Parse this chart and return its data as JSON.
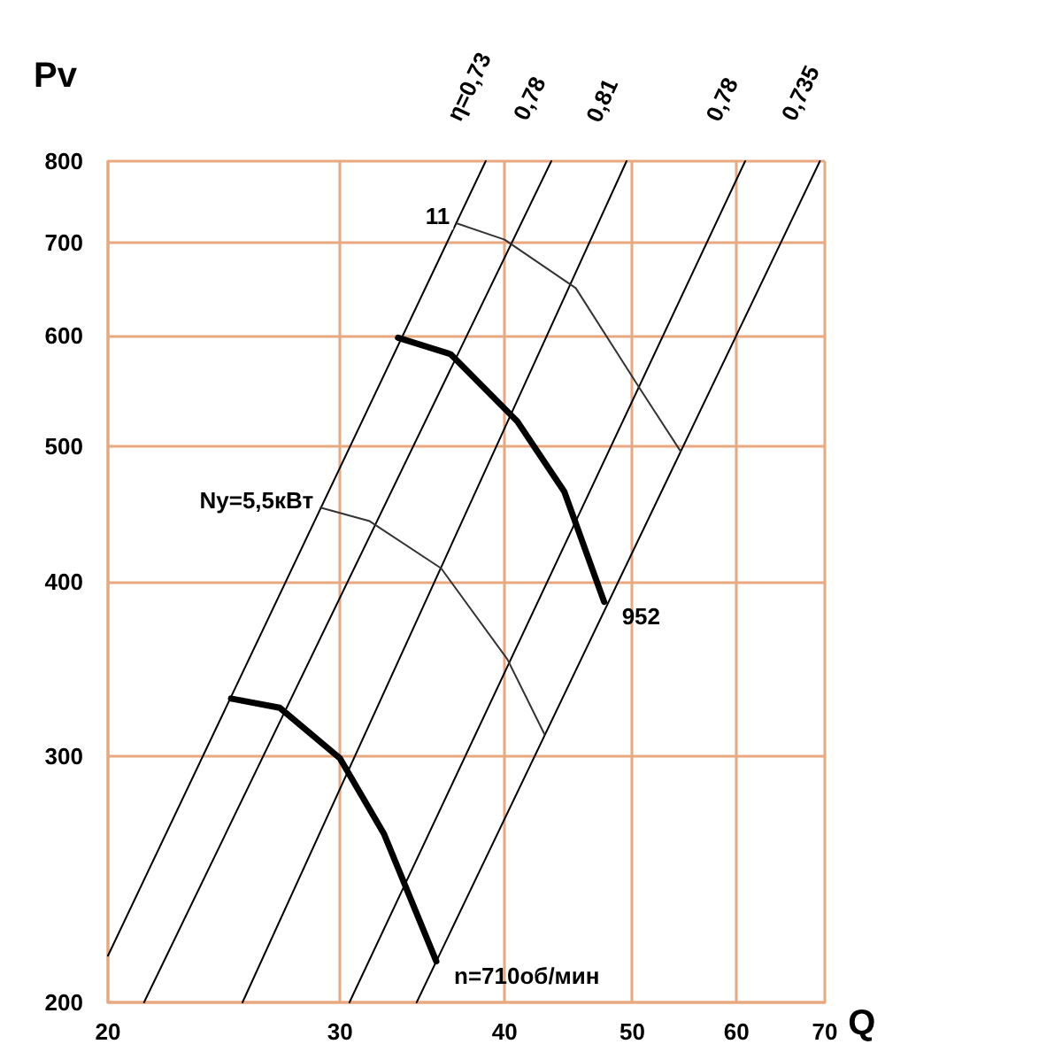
{
  "chart_data": {
    "type": "line",
    "xlabel": "Q",
    "ylabel": "Pv",
    "log": "xy",
    "grid": true,
    "legend": false,
    "marker": "none",
    "line_style": "solid",
    "xlim": [
      20,
      70
    ],
    "xticks": [
      20,
      30,
      40,
      50,
      60,
      70
    ],
    "ylim": [
      200,
      800
    ],
    "yticks": [
      200,
      300,
      400,
      500,
      600,
      700,
      800
    ],
    "series": [
      {
        "name": "η=0,73",
        "color": "#000000",
        "x": [
          20,
          38.7
        ],
        "values": [
          216,
          800
        ]
      },
      {
        "name": "0,78",
        "color": "#000000",
        "x": [
          21.3,
          43.4
        ],
        "values": [
          200,
          800
        ]
      },
      {
        "name": "0,81",
        "color": "#000000",
        "x": [
          25.3,
          49.5
        ],
        "values": [
          200,
          800
        ]
      },
      {
        "name": "0,78",
        "color": "#000000",
        "x": [
          30.5,
          60.9
        ],
        "values": [
          200,
          800
        ]
      },
      {
        "name": "0,735",
        "color": "#000000",
        "x": [
          34.3,
          69.4
        ],
        "values": [
          200,
          800
        ]
      },
      {
        "name": "11",
        "color": "#333333",
        "x": [
          54.4,
          50.6,
          45.3,
          40,
          36.8
        ],
        "values": [
          496,
          551,
          649,
          703,
          722
        ]
      },
      {
        "name": "Ny=5,5кВт",
        "color": "#333333",
        "x": [
          42.9,
          40.2,
          35.8,
          31.6,
          29
        ],
        "values": [
          311,
          352,
          409,
          442,
          452
        ]
      },
      {
        "name": "952",
        "color": "#000000",
        "x": [
          33.2,
          36.4,
          40.9,
          44.4,
          47.6
        ],
        "values": [
          598,
          582,
          521,
          464,
          387
        ]
      },
      {
        "name": "n=710об/мин",
        "color": "#000000",
        "x": [
          24.8,
          27,
          30,
          32.4,
          35.5
        ],
        "values": [
          330,
          325,
          299,
          264,
          214
        ]
      }
    ]
  }
}
